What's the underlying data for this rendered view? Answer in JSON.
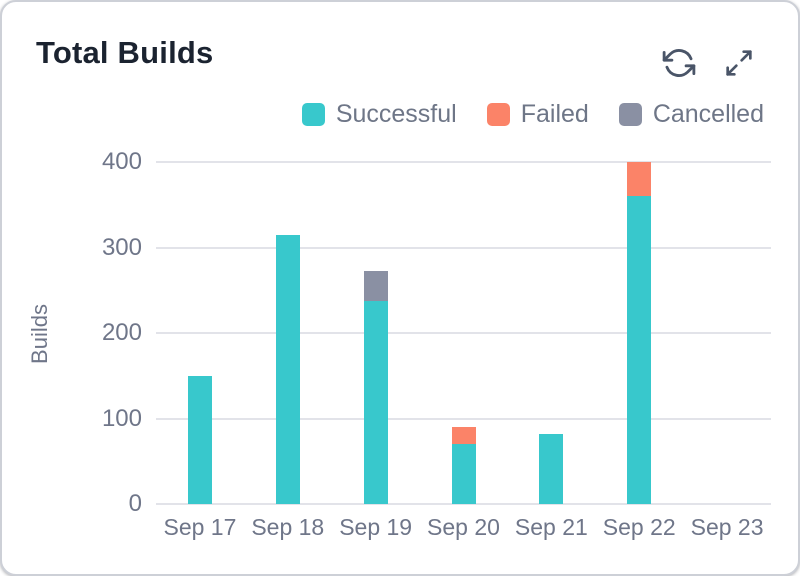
{
  "header": {
    "title": "Total Builds",
    "icons": [
      "refresh-icon",
      "expand-icon"
    ]
  },
  "chart_data": {
    "type": "bar",
    "stacked": true,
    "title": "Total Builds",
    "xlabel": "",
    "ylabel": "Builds",
    "categories": [
      "Sep 17",
      "Sep 18",
      "Sep 19",
      "Sep 20",
      "Sep 21",
      "Sep 22",
      "Sep 23"
    ],
    "series": [
      {
        "name": "Successful",
        "color": "#38c8cc",
        "values": [
          150,
          315,
          238,
          70,
          82,
          360,
          0
        ]
      },
      {
        "name": "Failed",
        "color": "#fb8368",
        "values": [
          0,
          0,
          0,
          20,
          0,
          40,
          0
        ]
      },
      {
        "name": "Cancelled",
        "color": "#8a90a3",
        "values": [
          0,
          0,
          34,
          0,
          0,
          0,
          0
        ]
      }
    ],
    "ylim": [
      0,
      400
    ],
    "yticks": [
      0,
      100,
      200,
      300,
      400
    ],
    "grid": true,
    "legend_position": "top-right"
  },
  "colors": {
    "card_border": "#cdd0d7",
    "grid_line": "#e2e3e9",
    "axis_text": "#6f7689",
    "legend_text": "#6e7687",
    "title_text": "#1b2330",
    "icon_stroke": "#4a5568",
    "background": "#ffffff"
  }
}
